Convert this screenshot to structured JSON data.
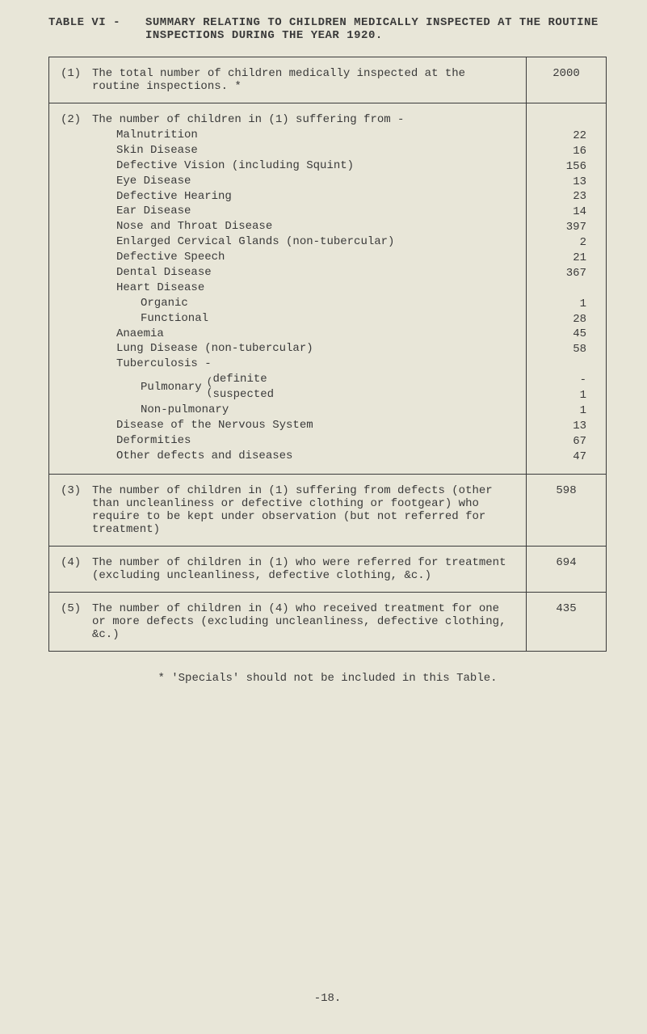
{
  "title": {
    "label": "TABLE VI -",
    "text": "SUMMARY RELATING TO CHILDREN MEDICALLY INSPECTED AT THE ROUTINE INSPECTIONS DURING THE YEAR 1920."
  },
  "rows": {
    "r1": {
      "num": "(1)",
      "text": "The total number of children medically inspected at the routine inspections. *",
      "value": "2000"
    },
    "r2": {
      "num": "(2)",
      "header": "The number of children in (1) suffering from -",
      "items": [
        {
          "label": "Malnutrition",
          "indent": 1,
          "value": "22"
        },
        {
          "label": "Skin Disease",
          "indent": 1,
          "value": "16"
        },
        {
          "label": "Defective Vision (including Squint)",
          "indent": 1,
          "value": "156"
        },
        {
          "label": "Eye Disease",
          "indent": 1,
          "value": "13"
        },
        {
          "label": "Defective Hearing",
          "indent": 1,
          "value": "23"
        },
        {
          "label": "Ear Disease",
          "indent": 1,
          "value": "14"
        },
        {
          "label": "Nose and Throat Disease",
          "indent": 1,
          "value": "397"
        },
        {
          "label": "Enlarged Cervical Glands (non-tubercular)",
          "indent": 1,
          "value": "2"
        },
        {
          "label": "Defective Speech",
          "indent": 1,
          "value": "21"
        },
        {
          "label": "Dental Disease",
          "indent": 1,
          "value": "367"
        },
        {
          "label": "Heart Disease",
          "indent": 1,
          "value": ""
        },
        {
          "label": "Organic",
          "indent": 2,
          "value": "1"
        },
        {
          "label": "Functional",
          "indent": 2,
          "value": "28"
        },
        {
          "label": "Anaemia",
          "indent": 1,
          "value": "45"
        },
        {
          "label": "Lung Disease (non-tubercular)",
          "indent": 1,
          "value": "58"
        },
        {
          "label": "Tuberculosis -",
          "indent": 1,
          "value": ""
        }
      ],
      "pulmonary": {
        "label": "Pulmonary",
        "sub": [
          {
            "label": "definite",
            "value": "-"
          },
          {
            "label": "suspected",
            "value": "1"
          }
        ]
      },
      "items_after": [
        {
          "label": "Non-pulmonary",
          "indent": 2,
          "value": "1"
        },
        {
          "label": "Disease of the Nervous System",
          "indent": 1,
          "value": "13"
        },
        {
          "label": "Deformities",
          "indent": 1,
          "value": "67"
        },
        {
          "label": "Other defects and diseases",
          "indent": 1,
          "value": "47"
        }
      ]
    },
    "r3": {
      "num": "(3)",
      "text": "The number of children in (1) suffering from defects (other than uncleanliness or defective clothing or footgear) who require to be kept under observation (but not referred for treatment)",
      "value": "598"
    },
    "r4": {
      "num": "(4)",
      "text": "The number of children in (1) who were referred for treatment (excluding uncleanliness, defective clothing, &c.)",
      "value": "694"
    },
    "r5": {
      "num": "(5)",
      "text": "The number of children in (4) who received treatment for one or more defects (excluding uncleanliness, defective clothing, &c.)",
      "value": "435"
    }
  },
  "footnote": "* 'Specials' should not be included in this Table.",
  "page_num": "-18."
}
